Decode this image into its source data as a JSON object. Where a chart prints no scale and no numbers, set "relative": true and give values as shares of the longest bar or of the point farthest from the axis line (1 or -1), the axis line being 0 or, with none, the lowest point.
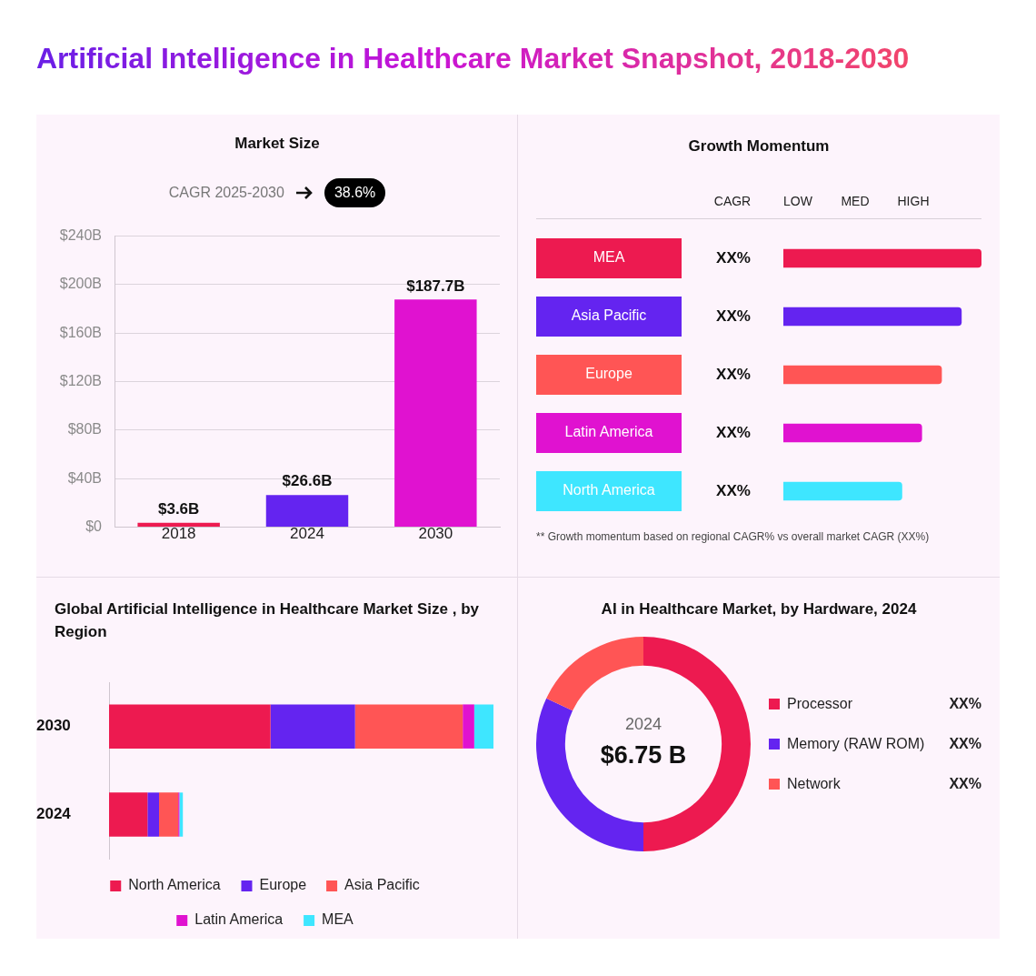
{
  "chart_data": [
    {
      "type": "bar",
      "title": "Artificial Intelligence in Healthcare Market Snapshot, 2018-2030",
      "subtitle": "Market Size",
      "annotations": [
        "CAGR 2025-2030",
        "38.6%"
      ],
      "categories": [
        "2018",
        "2024",
        "2030"
      ],
      "values": [
        3.6,
        26.6,
        187.7
      ],
      "colors": [
        "#ed1a50",
        "#6424f0",
        "#e012d0"
      ],
      "value_labels": [
        "$3.6B",
        "$26.6B",
        "$187.7B"
      ],
      "ylim": [
        0,
        240
      ],
      "yticks": [
        {
          "value": 0,
          "label": "$0"
        },
        {
          "value": 40,
          "label": "$40B"
        },
        {
          "value": 80,
          "label": "$80B"
        },
        {
          "value": 120,
          "label": "$120B"
        },
        {
          "value": 160,
          "label": "$160B"
        },
        {
          "value": 200,
          "label": "$200B"
        },
        {
          "value": 240,
          "label": "$240B"
        }
      ],
      "grid": "y"
    },
    {
      "type": "bar",
      "title": "Growth Momentum",
      "orientation": "horizontal",
      "relative": true,
      "categories": [
        "MEA",
        "Asia Pacific",
        "Europe",
        "Latin America",
        "North America"
      ],
      "values": [
        1,
        0.9,
        0.8,
        0.7,
        0.6
      ],
      "colors": [
        "#ed1a50",
        "#6424f0",
        "#ff5555",
        "#e012d0",
        "#3ee6ff"
      ],
      "annotations": [
        "CAGR",
        "LOW",
        "MED",
        "HIGH",
        "XX%",
        "XX%",
        "XX%",
        "XX%",
        "XX%",
        "** Growth momentum based on regional CAGR% vs overall market CAGR (XX%)"
      ]
    },
    {
      "type": "bar",
      "title": "Global Artificial Intelligence in Healthcare Market Size , by Region",
      "orientation": "horizontal",
      "stacked": true,
      "relative": true,
      "categories": [
        "2030",
        "2024"
      ],
      "series": [
        {
          "name": "North America",
          "color": "#ed1a50",
          "values": [
            0.42,
            0.1
          ]
        },
        {
          "name": "Europe",
          "color": "#6424f0",
          "values": [
            0.22,
            0.03
          ]
        },
        {
          "name": "Asia Pacific",
          "color": "#ff5555",
          "values": [
            0.28,
            0.05
          ]
        },
        {
          "name": "Latin America",
          "color": "#e012d0",
          "values": [
            0.03,
            0.003
          ]
        },
        {
          "name": "MEA",
          "color": "#3ee6ff",
          "values": [
            0.05,
            0.009
          ]
        }
      ],
      "legend": "bottom"
    },
    {
      "type": "donut",
      "title": "AI in Healthcare Market, by Hardware, 2024",
      "categories": [
        "Processor",
        "Memory (RAW ROM)",
        "Network"
      ],
      "values": [
        50,
        32,
        18
      ],
      "colors": [
        "#ed1a50",
        "#6424f0",
        "#ff5555"
      ],
      "value_labels": [
        "XX%",
        "XX%",
        "XX%"
      ],
      "annotations": [
        "2024",
        "$6.75 B"
      ],
      "legend": "right"
    }
  ]
}
